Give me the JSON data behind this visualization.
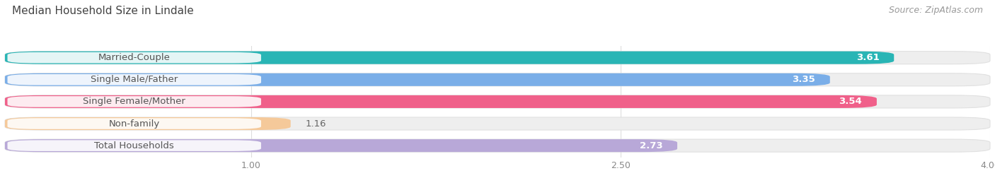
{
  "title": "Median Household Size in Lindale",
  "source": "Source: ZipAtlas.com",
  "categories": [
    "Married-Couple",
    "Single Male/Father",
    "Single Female/Mother",
    "Non-family",
    "Total Households"
  ],
  "values": [
    3.61,
    3.35,
    3.54,
    1.16,
    2.73
  ],
  "bar_colors": [
    "#29b5b5",
    "#7aaee8",
    "#f0608a",
    "#f5c99a",
    "#b8a8d8"
  ],
  "bar_bg_color": "#f0f0f0",
  "bar_border_color": "#e0e0e0",
  "xlim_data": [
    0,
    4.0
  ],
  "x_axis_min": 0.0,
  "x_axis_max": 4.0,
  "xticks": [
    1.0,
    2.5,
    4.0
  ],
  "label_fontsize": 9.5,
  "value_fontsize": 9.5,
  "title_fontsize": 11,
  "source_fontsize": 9,
  "label_text_color": "#555555",
  "value_color_inside": "#ffffff",
  "value_color_outside": "#666666",
  "background_color": "#ffffff",
  "grid_color": "#dddddd",
  "title_color": "#444444"
}
